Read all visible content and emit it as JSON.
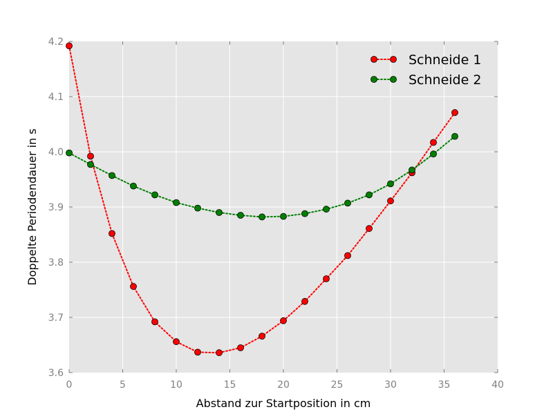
{
  "chart_data": {
    "type": "line",
    "xlabel": "Abstand zur Startposition in cm",
    "ylabel": "Doppelte Periodendauer in s",
    "xlim": [
      0,
      40
    ],
    "ylim": [
      3.6,
      4.2
    ],
    "x_ticks": [
      "0",
      "5",
      "10",
      "15",
      "20",
      "25",
      "30",
      "35",
      "40"
    ],
    "y_ticks": [
      "3.6",
      "3.7",
      "3.8",
      "3.9",
      "4.0",
      "4.1",
      "4.2"
    ],
    "grid": true,
    "legend_position": "top-right",
    "line_style": "dotted",
    "series": [
      {
        "name": "Schneide 1",
        "color": "#ff0000",
        "x": [
          0,
          2,
          4,
          6,
          8,
          10,
          12,
          14,
          16,
          18,
          20,
          22,
          24,
          26,
          28,
          30,
          32,
          34,
          36
        ],
        "y": [
          4.192,
          3.992,
          3.852,
          3.756,
          3.692,
          3.656,
          3.637,
          3.636,
          3.645,
          3.666,
          3.694,
          3.729,
          3.77,
          3.812,
          3.861,
          3.911,
          3.962,
          4.017,
          4.071
        ]
      },
      {
        "name": "Schneide 2",
        "color": "#008000",
        "x": [
          0,
          2,
          4,
          6,
          8,
          10,
          12,
          14,
          16,
          18,
          20,
          22,
          24,
          26,
          28,
          30,
          32,
          34,
          36
        ],
        "y": [
          3.998,
          3.977,
          3.957,
          3.938,
          3.922,
          3.908,
          3.898,
          3.89,
          3.885,
          3.882,
          3.883,
          3.888,
          3.896,
          3.907,
          3.922,
          3.942,
          3.967,
          3.996,
          4.028
        ]
      }
    ]
  }
}
